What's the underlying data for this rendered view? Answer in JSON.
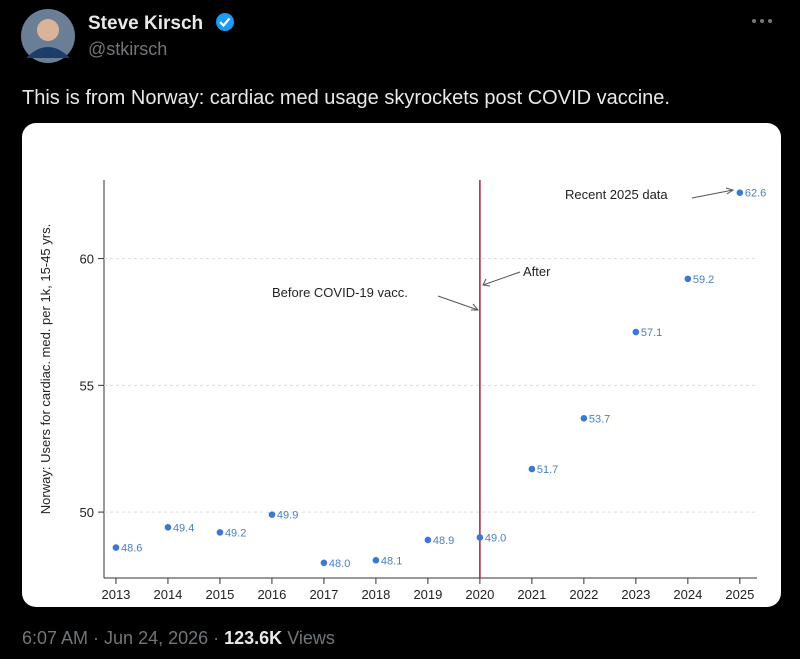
{
  "tweet": {
    "name": "Steve Kirsch",
    "handle": "@stkirsch",
    "text": "This is from Norway: cardiac med usage skyrockets post COVID vaccine.",
    "time": "6:07 AM",
    "date": "Jun 24, 2026",
    "views": "123.6K",
    "views_label": "Views"
  },
  "chart_data": {
    "type": "scatter",
    "y_label": "Norway: Users for cardiac. med. per 1k, 15-45 yrs.",
    "x": [
      2013,
      2014,
      2015,
      2016,
      2017,
      2018,
      2019,
      2020,
      2021,
      2022,
      2023,
      2024,
      2025
    ],
    "values": [
      48.6,
      49.4,
      49.2,
      49.9,
      48,
      48.1,
      48.9,
      49,
      51.7,
      53.7,
      57.1,
      59.2,
      62.6
    ],
    "value_labels": [
      "48.6",
      "49.4",
      "49.2",
      "49.9",
      "48.0",
      "48.1",
      "48.9",
      "49.0",
      "51.7",
      "53.7",
      "57.1",
      "59.2",
      "62.6"
    ],
    "color": "#3b78d4",
    "label_color": "#4a7fbf",
    "xlim": [
      2012.77,
      2025.33
    ],
    "xticks": [
      2013,
      2014,
      2015,
      2016,
      2017,
      2018,
      2019,
      2020,
      2021,
      2022,
      2023,
      2024,
      2025
    ],
    "ylim": [
      47.4,
      63.1
    ],
    "yticks": [
      50,
      55,
      60
    ],
    "grid": true,
    "vline": 2020,
    "vline_color": "#a0243a",
    "annotations": [
      "Recent 2025 data",
      "After",
      "Before COVID-19 vacc."
    ]
  }
}
